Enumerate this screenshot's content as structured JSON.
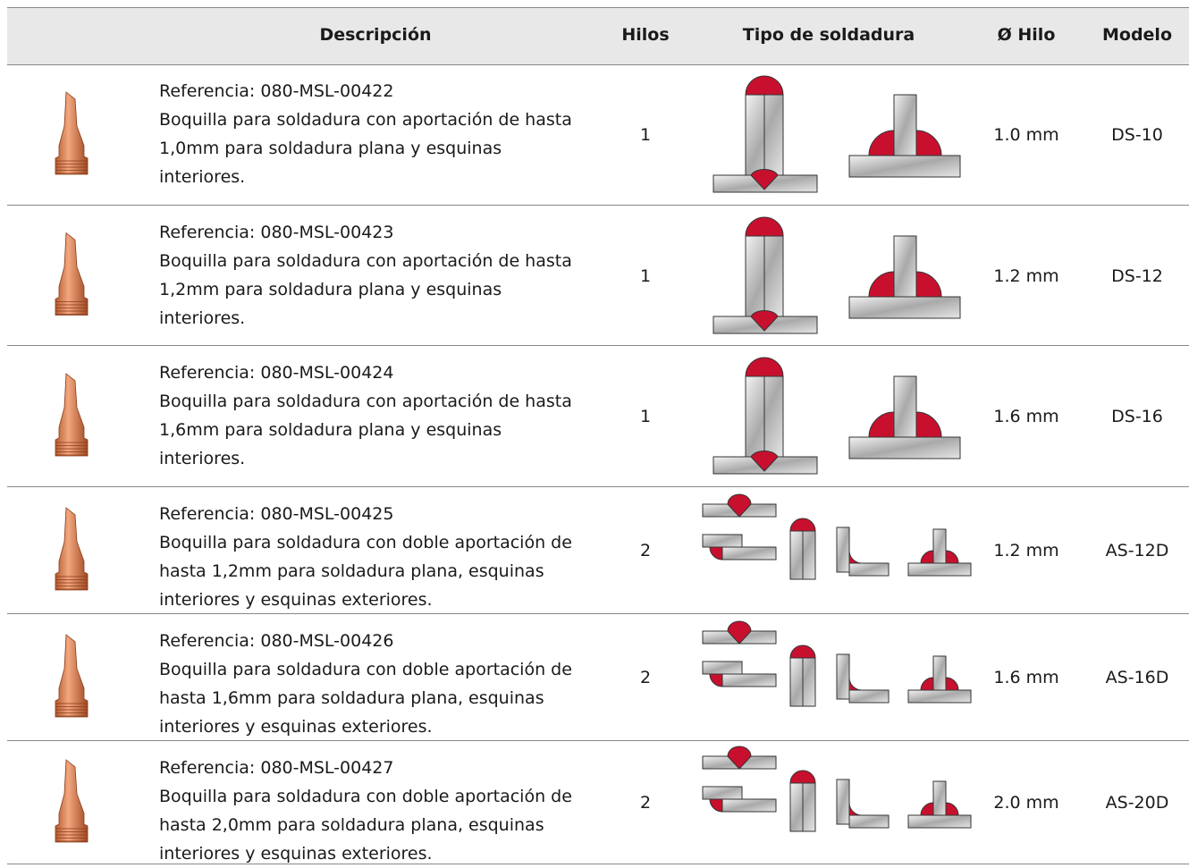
{
  "header": [
    "Descripción",
    "Hilos",
    "Tipo de soldadura",
    "Ø Hilo",
    "Modelo"
  ],
  "rows": [
    {
      "reference": "Referencia: 080-MSL-00422",
      "description": "Boquilla para soldadura con aportación de hasta 1,0mm para soldadura plana y esquinas interiores.",
      "wires": 1,
      "diameter": "1.0 mm",
      "model": "DS-10"
    },
    {
      "reference": "Referencia: 080-MSL-00423",
      "description": "Boquilla para soldadura con aportación de hasta 1,2mm para soldadura plana y esquinas interiores.",
      "wires": 1,
      "diameter": "1.2 mm",
      "model": "DS-12"
    },
    {
      "reference": "Referencia: 080-MSL-00424",
      "description": "Boquilla para soldadura con aportación de hasta 1,6mm para soldadura plana y esquinas interiores.",
      "wires": 1,
      "diameter": "1.6 mm",
      "model": "DS-16"
    },
    {
      "reference": "Referencia: 080-MSL-00425",
      "description": "Boquilla para soldadura con doble aportación de hasta 1,2mm para soldadura plana, esquinas interiores y esquinas exteriores.",
      "wires": 2,
      "diameter": "1.2 mm",
      "model": "AS-12D"
    },
    {
      "reference": "Referencia: 080-MSL-00426",
      "description": "Boquilla para soldadura con doble aportación de hasta 1,6mm para soldadura plana, esquinas interiores y esquinas exteriores.",
      "wires": 2,
      "diameter": "1.6 mm",
      "model": "AS-16D"
    },
    {
      "reference": "Referencia: 080-MSL-00427",
      "description": "Boquilla para soldadura con doble aportación de hasta 2,0mm para soldadura plana, esquinas interiores y esquinas exteriores.",
      "wires": 2,
      "diameter": "2.0 mm",
      "model": "AS-20D"
    }
  ]
}
